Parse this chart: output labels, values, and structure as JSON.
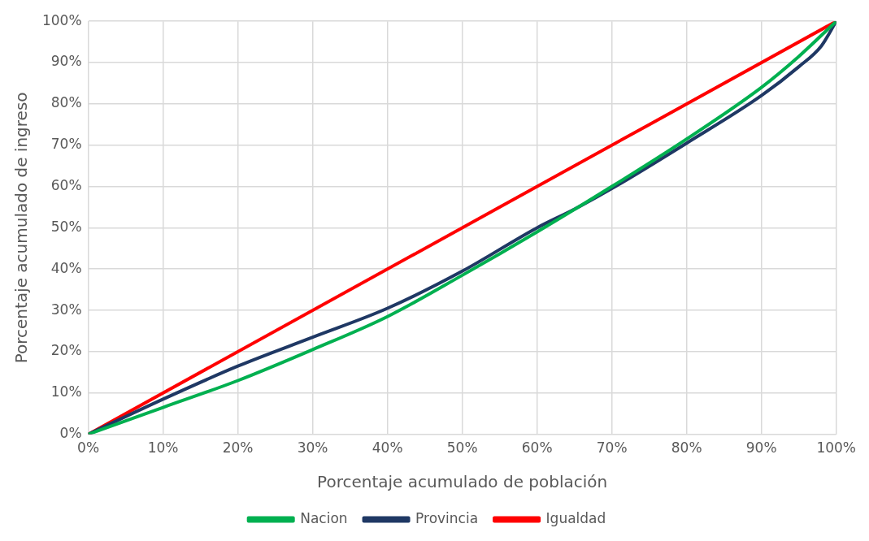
{
  "chart_data": {
    "type": "line",
    "xlabel": "Porcentaje acumulado de población",
    "ylabel": "Porcentaje acumulado de ingreso",
    "xlim": [
      0,
      100
    ],
    "ylim": [
      0,
      100
    ],
    "xticks": [
      {
        "value": 0,
        "label": "0%"
      },
      {
        "value": 10,
        "label": "10%"
      },
      {
        "value": 20,
        "label": "20%"
      },
      {
        "value": 30,
        "label": "30%"
      },
      {
        "value": 40,
        "label": "40%"
      },
      {
        "value": 50,
        "label": "50%"
      },
      {
        "value": 60,
        "label": "60%"
      },
      {
        "value": 70,
        "label": "70%"
      },
      {
        "value": 80,
        "label": "80%"
      },
      {
        "value": 90,
        "label": "90%"
      },
      {
        "value": 100,
        "label": "100%"
      }
    ],
    "yticks": [
      {
        "value": 0,
        "label": "0%"
      },
      {
        "value": 10,
        "label": "10%"
      },
      {
        "value": 20,
        "label": "20%"
      },
      {
        "value": 30,
        "label": "30%"
      },
      {
        "value": 40,
        "label": "40%"
      },
      {
        "value": 50,
        "label": "50%"
      },
      {
        "value": 60,
        "label": "60%"
      },
      {
        "value": 70,
        "label": "70%"
      },
      {
        "value": 80,
        "label": "80%"
      },
      {
        "value": 90,
        "label": "90%"
      },
      {
        "value": 100,
        "label": "100%"
      }
    ],
    "grid": true,
    "legend": "bottom",
    "marker": "none",
    "line_style": "solid",
    "series": [
      {
        "name": "Nacion",
        "color": "#00b050",
        "x": [
          0,
          10,
          20,
          30,
          40,
          50,
          60,
          70,
          80,
          90,
          95,
          100
        ],
        "values": [
          0,
          6.5,
          13,
          20.5,
          28.5,
          38.5,
          49,
          60,
          71.5,
          84,
          91.5,
          100
        ]
      },
      {
        "name": "Provincia",
        "color": "#1f3864",
        "x": [
          0,
          10,
          20,
          30,
          40,
          50,
          60,
          65,
          70,
          80,
          90,
          95,
          98,
          100
        ],
        "values": [
          0,
          8.5,
          16.5,
          23.5,
          30.5,
          39.5,
          50,
          54.5,
          59.5,
          70.5,
          82,
          89,
          94,
          100
        ]
      },
      {
        "name": "Igualdad",
        "color": "#ff0000",
        "x": [
          0,
          100
        ],
        "values": [
          0,
          100
        ]
      }
    ]
  }
}
